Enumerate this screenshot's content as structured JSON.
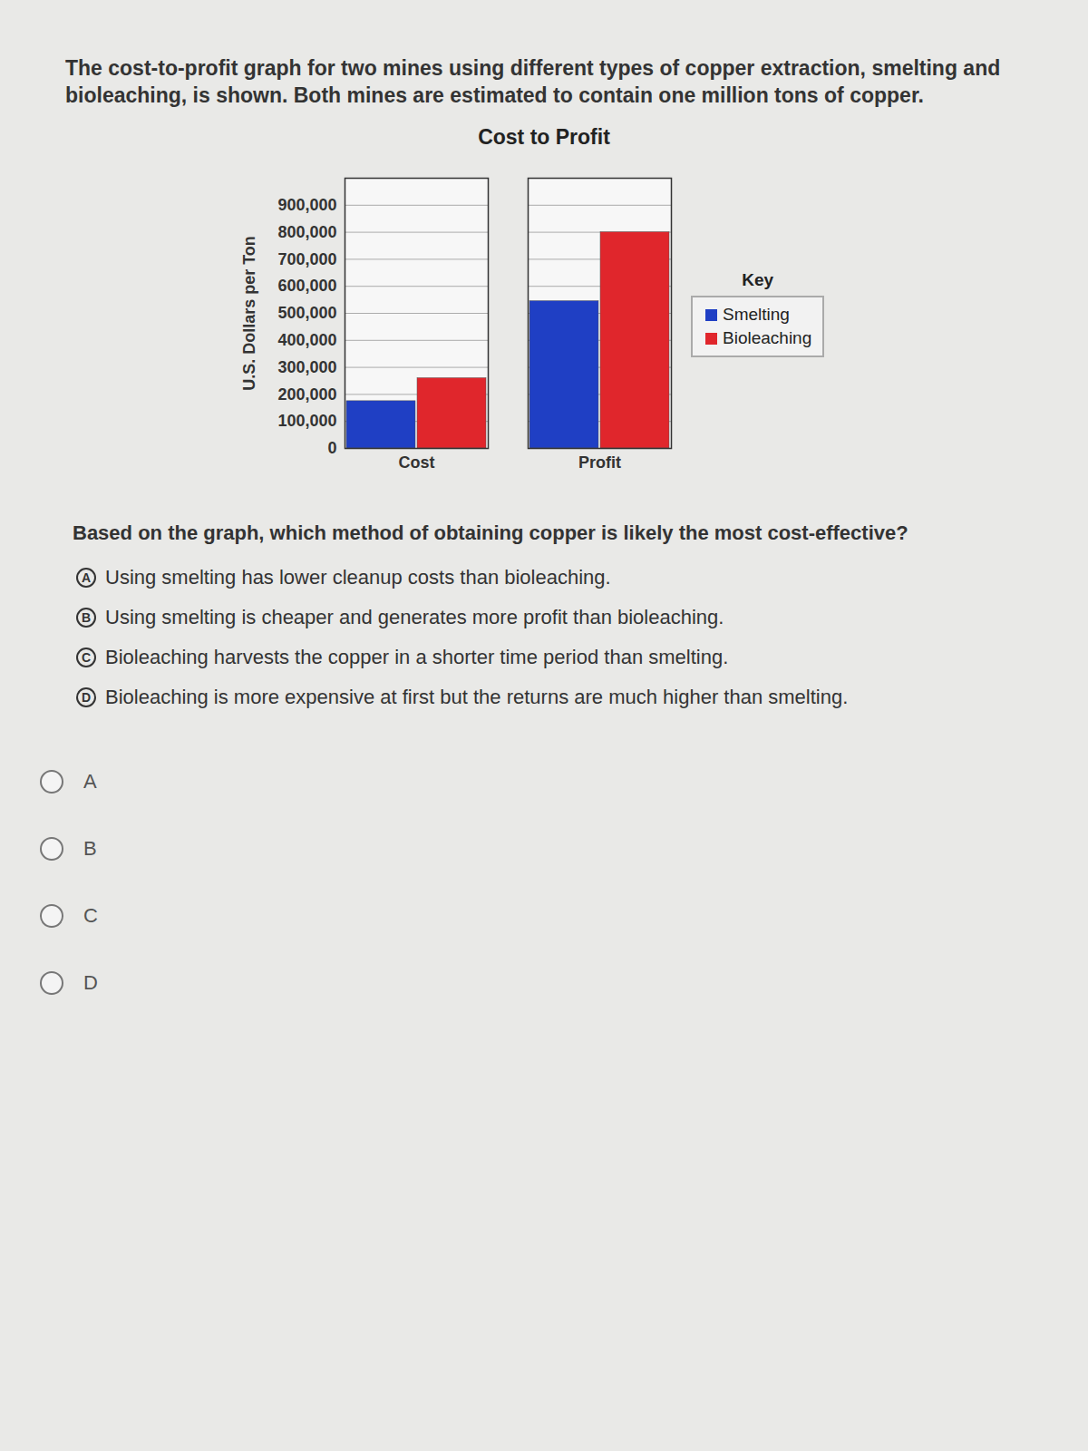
{
  "intro": "The cost-to-profit graph for two mines using different types of copper extraction, smelting and bioleaching, is shown. Both mines are estimated to contain one million tons of copper.",
  "chart_data": {
    "type": "bar",
    "title": "Cost to Profit",
    "y_label": "U.S. Dollars per Ton",
    "categories": [
      "Cost",
      "Profit"
    ],
    "series": [
      {
        "name": "Smelting",
        "color": "#1f3fc4",
        "values": [
          175000,
          545000
        ]
      },
      {
        "name": "Bioleaching",
        "color": "#e0262c",
        "values": [
          260000,
          800000
        ]
      }
    ],
    "legend_title": "Key",
    "legend": "right",
    "grid": true,
    "ylim": [
      0,
      1000000
    ],
    "yticks": [
      0,
      {
        "value": 100000,
        "label": "100,000"
      },
      {
        "value": 200000,
        "label": "200,000"
      },
      {
        "value": 300000,
        "label": "300,000"
      },
      {
        "value": 400000,
        "label": "400,000"
      },
      {
        "value": 500000,
        "label": "500,000"
      },
      {
        "value": 600000,
        "label": "600,000"
      },
      {
        "value": 700000,
        "label": "700,000"
      },
      {
        "value": 800000,
        "label": "800,000"
      },
      {
        "value": 900000,
        "label": "900,000"
      }
    ]
  },
  "question": {
    "before": "Based on the graph, which method of obtaining copper is likely the ",
    "bold": "most",
    "after": " cost-effective?"
  },
  "options": [
    {
      "letter": "A",
      "text": "Using smelting has lower cleanup costs than bioleaching."
    },
    {
      "letter": "B",
      "text": "Using smelting is cheaper and generates more profit than bioleaching."
    },
    {
      "letter": "C",
      "text": "Bioleaching harvests the copper in a shorter time period than smelting."
    },
    {
      "letter": "D",
      "text": "Bioleaching is more expensive at first but the returns are much higher than smelting."
    }
  ],
  "choices": [
    "A",
    "B",
    "C",
    "D"
  ]
}
